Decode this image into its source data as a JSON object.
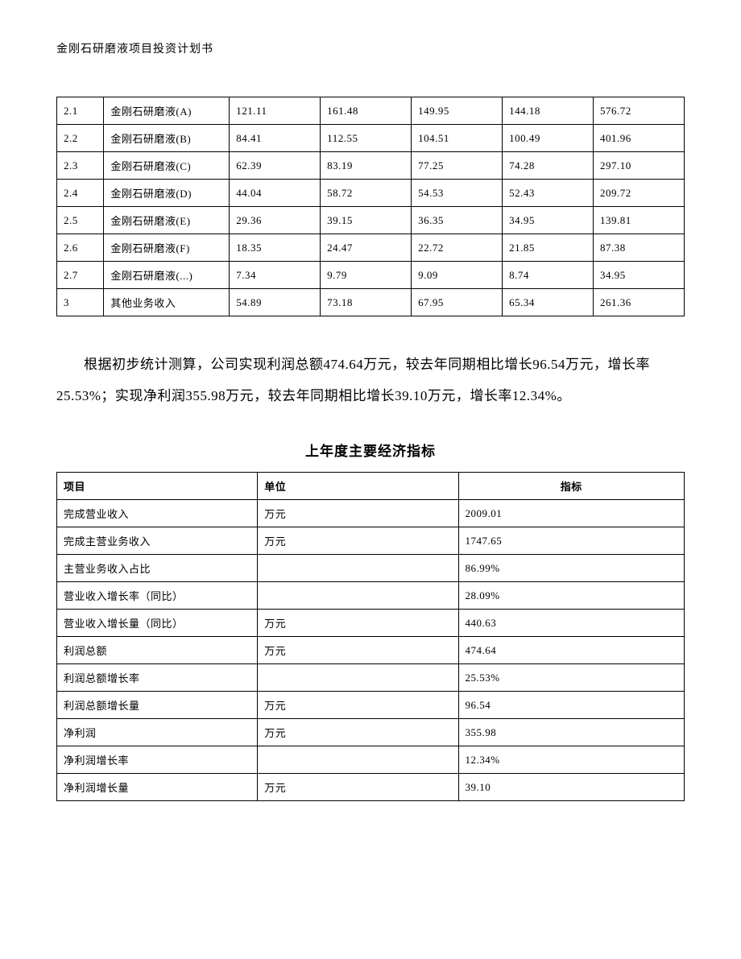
{
  "header": {
    "title": "金刚石研磨液项目投资计划书"
  },
  "table1": {
    "type": "table",
    "border_color": "#000000",
    "background_color": "#ffffff",
    "text_color": "#000000",
    "font_size": 13,
    "rows": [
      {
        "idx": "2.1",
        "name": "金刚石研磨液(A)",
        "v1": "121.11",
        "v2": "161.48",
        "v3": "149.95",
        "v4": "144.18",
        "v5": "576.72"
      },
      {
        "idx": "2.2",
        "name": "金刚石研磨液(B)",
        "v1": "84.41",
        "v2": "112.55",
        "v3": "104.51",
        "v4": "100.49",
        "v5": "401.96"
      },
      {
        "idx": "2.3",
        "name": "金刚石研磨液(C)",
        "v1": "62.39",
        "v2": "83.19",
        "v3": "77.25",
        "v4": "74.28",
        "v5": "297.10"
      },
      {
        "idx": "2.4",
        "name": "金刚石研磨液(D)",
        "v1": "44.04",
        "v2": "58.72",
        "v3": "54.53",
        "v4": "52.43",
        "v5": "209.72"
      },
      {
        "idx": "2.5",
        "name": "金刚石研磨液(E)",
        "v1": "29.36",
        "v2": "39.15",
        "v3": "36.35",
        "v4": "34.95",
        "v5": "139.81"
      },
      {
        "idx": "2.6",
        "name": "金刚石研磨液(F)",
        "v1": "18.35",
        "v2": "24.47",
        "v3": "22.72",
        "v4": "21.85",
        "v5": "87.38"
      },
      {
        "idx": "2.7",
        "name": "金刚石研磨液(...)",
        "v1": "7.34",
        "v2": "9.79",
        "v3": "9.09",
        "v4": "8.74",
        "v5": "34.95"
      },
      {
        "idx": "3",
        "name": "其他业务收入",
        "v1": "54.89",
        "v2": "73.18",
        "v3": "67.95",
        "v4": "65.34",
        "v5": "261.36"
      }
    ]
  },
  "paragraph": {
    "text": "根据初步统计测算，公司实现利润总额474.64万元，较去年同期相比增长96.54万元，增长率25.53%；实现净利润355.98万元，较去年同期相比增长39.10万元，增长率12.34%。"
  },
  "section_title": "上年度主要经济指标",
  "table2": {
    "type": "table",
    "border_color": "#000000",
    "background_color": "#ffffff",
    "text_color": "#000000",
    "font_size": 13,
    "header_font_weight": "bold",
    "columns": {
      "item": "项目",
      "unit": "单位",
      "value": "指标"
    },
    "rows": [
      {
        "item": "完成营业收入",
        "unit": "万元",
        "value": "2009.01"
      },
      {
        "item": "完成主营业务收入",
        "unit": "万元",
        "value": "1747.65"
      },
      {
        "item": "主营业务收入占比",
        "unit": "",
        "value": "86.99%"
      },
      {
        "item": "营业收入增长率（同比）",
        "unit": "",
        "value": "28.09%"
      },
      {
        "item": "营业收入增长量（同比）",
        "unit": "万元",
        "value": "440.63"
      },
      {
        "item": "利润总额",
        "unit": "万元",
        "value": "474.64"
      },
      {
        "item": "利润总额增长率",
        "unit": "",
        "value": "25.53%"
      },
      {
        "item": "利润总额增长量",
        "unit": "万元",
        "value": "96.54"
      },
      {
        "item": "净利润",
        "unit": "万元",
        "value": "355.98"
      },
      {
        "item": "净利润增长率",
        "unit": "",
        "value": "12.34%"
      },
      {
        "item": "净利润增长量",
        "unit": "万元",
        "value": "39.10"
      }
    ]
  }
}
